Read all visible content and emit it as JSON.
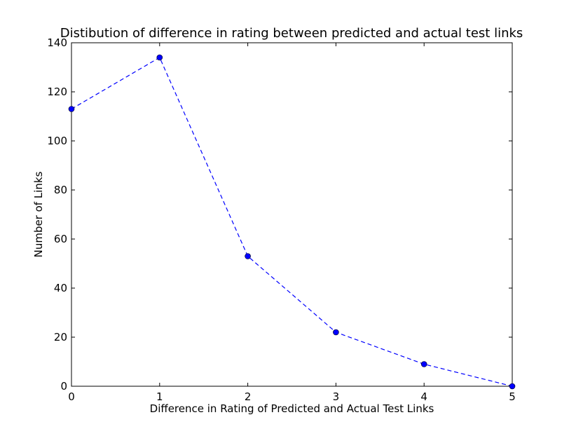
{
  "chart_data": {
    "type": "line",
    "title": "Distibution of difference in rating between predicted and actual test links",
    "xlabel": "Difference in Rating of Predicted and Actual Test Links",
    "ylabel": "Number of Links",
    "x": [
      0,
      1,
      2,
      3,
      4,
      5
    ],
    "series": [
      {
        "values": [
          113,
          134,
          53,
          22,
          9,
          0
        ],
        "color": "#0000ff",
        "line_style": "dashed",
        "marker": "circle"
      }
    ],
    "xlim": [
      0,
      5
    ],
    "ylim": [
      0,
      140
    ],
    "xticks": [
      0,
      1,
      2,
      3,
      4,
      5
    ],
    "yticks": [
      0,
      20,
      40,
      60,
      80,
      100,
      120,
      140
    ],
    "grid": false,
    "legend": "none"
  }
}
